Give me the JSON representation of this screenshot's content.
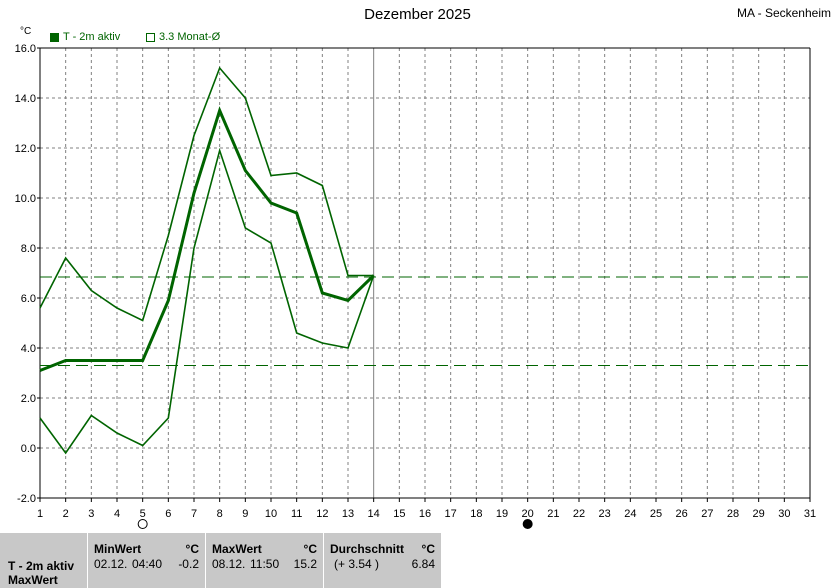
{
  "title": "Dezember 2025",
  "station": "MA - Seckenheim",
  "unit_label": "°C",
  "legend": [
    {
      "label": "T - 2m aktiv",
      "style": "filled"
    },
    {
      "label": "3.3 Monat-Ø",
      "style": "outline"
    }
  ],
  "colors": {
    "series": "#006400",
    "grid": "#808080",
    "today_line": "#808080",
    "panel_bg": "#c8c8c8"
  },
  "chart_data": {
    "type": "line",
    "title": "Dezember 2025",
    "ylabel": "°C",
    "ylim": [
      -2,
      16
    ],
    "y_ticks": [
      "-2.0",
      "0.0",
      "2.0",
      "4.0",
      "6.0",
      "8.0",
      "10.0",
      "12.0",
      "14.0",
      "16.0"
    ],
    "xlim": [
      1,
      31
    ],
    "x_ticks": [
      "1",
      "2",
      "3",
      "4",
      "5",
      "6",
      "7",
      "8",
      "9",
      "10",
      "11",
      "12",
      "13",
      "14",
      "15",
      "16",
      "17",
      "18",
      "19",
      "20",
      "21",
      "22",
      "23",
      "24",
      "25",
      "26",
      "27",
      "28",
      "29",
      "30",
      "31"
    ],
    "grid": true,
    "current_day": 14,
    "series": [
      {
        "role": "max",
        "x": [
          1,
          2,
          3,
          4,
          5,
          6,
          7,
          8,
          9,
          10,
          11,
          12,
          13,
          14
        ],
        "values": [
          5.6,
          7.6,
          6.3,
          5.6,
          5.1,
          8.5,
          12.5,
          15.2,
          14.0,
          10.9,
          11.0,
          10.5,
          6.9,
          6.9
        ]
      },
      {
        "role": "avg",
        "x": [
          1,
          2,
          3,
          4,
          5,
          6,
          7,
          8,
          9,
          10,
          11,
          12,
          13,
          14
        ],
        "values": [
          3.1,
          3.5,
          3.5,
          3.5,
          3.5,
          5.9,
          10.2,
          13.5,
          11.1,
          9.8,
          9.4,
          6.2,
          5.9,
          6.9
        ]
      },
      {
        "role": "min",
        "x": [
          1,
          2,
          3,
          4,
          5,
          6,
          7,
          8,
          9,
          10,
          11,
          12,
          13,
          14
        ],
        "values": [
          1.2,
          -0.2,
          1.3,
          0.6,
          0.1,
          1.2,
          8.0,
          11.9,
          8.8,
          8.2,
          4.6,
          4.2,
          4.0,
          6.9
        ]
      }
    ],
    "reference_lines": [
      6.84,
      3.3
    ],
    "moon_phases": [
      {
        "day": 5,
        "phase": "full"
      },
      {
        "day": 20,
        "phase": "new"
      }
    ]
  },
  "stats": {
    "row_label": "T - 2m aktiv",
    "row_sublabel": "MaxWert",
    "min": {
      "header": "MinWert",
      "unit": "°C",
      "date": "02.12.",
      "time": "04:40",
      "value": "-0.2"
    },
    "max": {
      "header": "MaxWert",
      "unit": "°C",
      "date": "08.12.",
      "time": "11:50",
      "value": "15.2"
    },
    "avg": {
      "header": "Durchschnitt",
      "unit": "°C",
      "deviation": "(+ 3.54 )",
      "value": "6.84"
    }
  }
}
